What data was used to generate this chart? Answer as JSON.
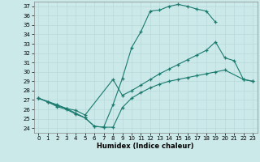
{
  "xlabel": "Humidex (Indice chaleur)",
  "xlim": [
    -0.5,
    23.5
  ],
  "ylim": [
    23.5,
    37.5
  ],
  "yticks": [
    24,
    25,
    26,
    27,
    28,
    29,
    30,
    31,
    32,
    33,
    34,
    35,
    36,
    37
  ],
  "xticks": [
    0,
    1,
    2,
    3,
    4,
    5,
    6,
    7,
    8,
    9,
    10,
    11,
    12,
    13,
    14,
    15,
    16,
    17,
    18,
    19,
    20,
    21,
    22,
    23
  ],
  "bg_color": "#cce9ea",
  "line_color": "#1a7a6e",
  "grid_color": "#b8d8d9",
  "line1_x": [
    0,
    1,
    2,
    3,
    4,
    5,
    6,
    7,
    8,
    9,
    10,
    11,
    12,
    13,
    14,
    15,
    16,
    17,
    18,
    19
  ],
  "line1_y": [
    27.2,
    26.8,
    26.4,
    26.1,
    25.6,
    25.1,
    24.2,
    24.1,
    26.5,
    29.3,
    32.6,
    34.3,
    36.5,
    36.6,
    37.0,
    37.2,
    37.0,
    36.7,
    36.5,
    35.3
  ],
  "line2_x": [
    0,
    1,
    2,
    3,
    4,
    5,
    6,
    7,
    8,
    9,
    10,
    11,
    12,
    13,
    14,
    15,
    16,
    17,
    18,
    19,
    20,
    22,
    23
  ],
  "line2_y": [
    27.2,
    26.8,
    26.3,
    26.0,
    25.5,
    25.1,
    24.2,
    24.1,
    24.1,
    26.2,
    27.2,
    27.8,
    28.3,
    28.7,
    29.0,
    29.2,
    29.4,
    29.6,
    29.8,
    30.0,
    30.2,
    29.2,
    29.0
  ],
  "line3_x": [
    0,
    2,
    3,
    4,
    5,
    8,
    9,
    10,
    11,
    12,
    13,
    14,
    15,
    16,
    17,
    18,
    19,
    20,
    21,
    22,
    23
  ],
  "line3_y": [
    27.2,
    26.5,
    26.1,
    25.9,
    25.4,
    29.2,
    27.5,
    28.0,
    28.6,
    29.2,
    29.8,
    30.3,
    30.8,
    31.3,
    31.8,
    32.3,
    33.2,
    31.5,
    31.2,
    29.2,
    29.0
  ]
}
